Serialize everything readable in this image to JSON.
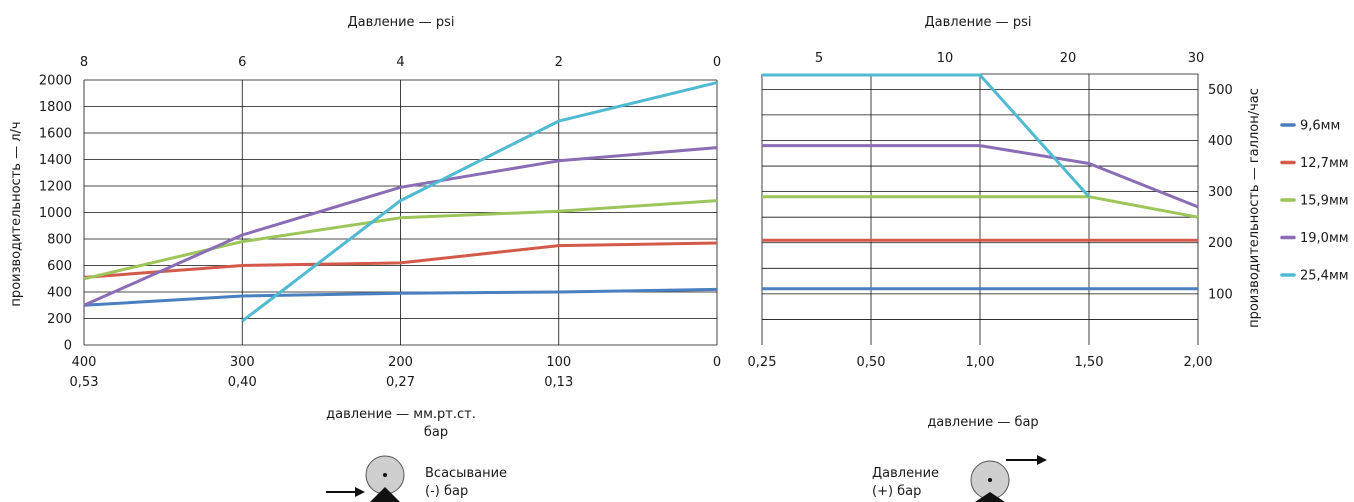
{
  "series_colors": {
    "9,6мм": "#4a7fc0",
    "12,7мм": "#d35a4a",
    "15,9мм": "#9cc55a",
    "19,0мм": "#8b6db5",
    "25,4мм": "#4fbad1"
  },
  "chart_data": [
    {
      "type": "line",
      "name_hint": "suction",
      "title": "Давление — psi",
      "ylabel": "производительность — л/ч",
      "xlabel_1": "давление — мм.рт.ст.",
      "xlabel_2": "бар",
      "ylim": [
        0,
        2000
      ],
      "xlim": [
        400,
        0
      ],
      "x": [
        400,
        300,
        200,
        100,
        0
      ],
      "y_ticks": [
        "0",
        "200",
        "400",
        "600",
        "800",
        "1000",
        "1200",
        "1400",
        "1600",
        "1800",
        "2000"
      ],
      "x_tick_labels": [
        "400",
        "300",
        "200",
        "100",
        "0"
      ],
      "x_tick_labels_bar": [
        "0,53",
        "0,40",
        "0,27",
        "0,13",
        ""
      ],
      "top_axis_ticks": [
        "8",
        "6",
        "4",
        "2",
        "0"
      ],
      "series": [
        {
          "name": "9,6мм",
          "points": [
            [
              400,
              300
            ],
            [
              300,
              370
            ],
            [
              200,
              390
            ],
            [
              100,
              400
            ],
            [
              0,
              420
            ]
          ]
        },
        {
          "name": "12,7мм",
          "points": [
            [
              400,
              510
            ],
            [
              300,
              600
            ],
            [
              200,
              620
            ],
            [
              100,
              750
            ],
            [
              0,
              770
            ]
          ]
        },
        {
          "name": "15,9мм",
          "points": [
            [
              400,
              500
            ],
            [
              300,
              780
            ],
            [
              200,
              960
            ],
            [
              100,
              1010
            ],
            [
              0,
              1090
            ]
          ]
        },
        {
          "name": "19,0мм",
          "points": [
            [
              400,
              300
            ],
            [
              300,
              830
            ],
            [
              200,
              1190
            ],
            [
              100,
              1390
            ],
            [
              0,
              1490
            ]
          ]
        },
        {
          "name": "25,4мм",
          "points": [
            [
              300,
              180
            ],
            [
              200,
              1090
            ],
            [
              100,
              1690
            ],
            [
              0,
              1980
            ]
          ]
        }
      ],
      "pump_label_1": "Всасывание",
      "pump_label_2": "(-) бар"
    },
    {
      "type": "line",
      "name_hint": "pressure",
      "title": "Давление — psi",
      "ylabel": "производительность — галлон/час",
      "xlabel": "давление — бар",
      "xlim": [
        0.25,
        2.0
      ],
      "ylim": [
        0,
        530
      ],
      "x_tick_labels": [
        "0,25",
        "0,50",
        "1,00",
        "1,50",
        "2,00"
      ],
      "y_ticks": [
        "100",
        "200",
        "300",
        "400",
        "500"
      ],
      "top_axis_ticks": [
        "5",
        "10",
        "20",
        "30"
      ],
      "series": [
        {
          "name": "9,6мм",
          "points": [
            [
              0.25,
              110
            ],
            [
              0.5,
              110
            ],
            [
              1.0,
              110
            ],
            [
              1.5,
              110
            ],
            [
              2.0,
              110
            ]
          ]
        },
        {
          "name": "12,7мм",
          "points": [
            [
              0.25,
              205
            ],
            [
              0.5,
              205
            ],
            [
              1.0,
              205
            ],
            [
              1.5,
              205
            ],
            [
              2.0,
              205
            ]
          ]
        },
        {
          "name": "15,9мм",
          "points": [
            [
              0.25,
              290
            ],
            [
              0.5,
              290
            ],
            [
              1.0,
              290
            ],
            [
              1.5,
              290
            ],
            [
              2.0,
              250
            ]
          ]
        },
        {
          "name": "19,0мм",
          "points": [
            [
              0.25,
              390
            ],
            [
              0.5,
              390
            ],
            [
              1.0,
              390
            ],
            [
              1.5,
              355
            ],
            [
              2.0,
              270
            ]
          ]
        },
        {
          "name": "25,4мм",
          "points": [
            [
              0.25,
              528
            ],
            [
              0.5,
              528
            ],
            [
              1.0,
              528
            ],
            [
              1.5,
              290
            ]
          ]
        }
      ],
      "pump_label_1": "Давление",
      "pump_label_2": "(+) бар"
    }
  ],
  "legend": [
    "9,6мм",
    "12,7мм",
    "15,9мм",
    "19,0мм",
    "25,4мм"
  ]
}
